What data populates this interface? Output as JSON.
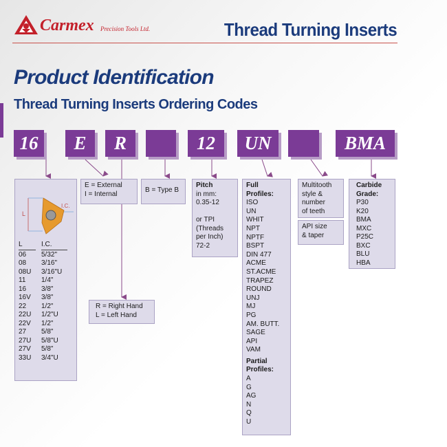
{
  "header": {
    "brand_name": "Carmex",
    "brand_sub": "Precision Tools Ltd.",
    "title": "Thread Turning Inserts"
  },
  "page_title": "Product Identification",
  "subtitle": "Thread Turning Inserts Ordering Codes",
  "colors": {
    "accent_purple": "#7b3b96",
    "title_navy": "#1b3b7c",
    "brand_red": "#c3202a"
  },
  "codes": [
    "16",
    "E",
    "R",
    "",
    "12",
    "UN",
    "",
    "BMA"
  ],
  "size_box": {
    "diagram_L": "L",
    "diagram_IC": "I.C.",
    "col_headers": [
      "L",
      "I.C."
    ],
    "rows": [
      [
        "06",
        "5/32\""
      ],
      [
        "08",
        "3/16\""
      ],
      [
        "08U",
        "3/16\"U"
      ],
      [
        "11",
        "1/4\""
      ],
      [
        "16",
        "3/8\""
      ],
      [
        "16V",
        "3/8\""
      ],
      [
        "22",
        "1/2\""
      ],
      [
        "22U",
        "1/2\"U"
      ],
      [
        "22V",
        "1/2\""
      ],
      [
        "27",
        "5/8\""
      ],
      [
        "27U",
        "5/8\"U"
      ],
      [
        "27V",
        "5/8\""
      ],
      [
        "33U",
        "3/4\"U"
      ]
    ]
  },
  "ext_int_box": [
    "E = External",
    "I = Internal"
  ],
  "hand_box": [
    "R = Right Hand",
    "L = Left Hand"
  ],
  "type_box": "B = Type B",
  "pitch_box": {
    "heading": "Pitch",
    "lines": [
      "in mm:",
      "0.35-12",
      "",
      "or TPI",
      "(Threads",
      "per Inch)",
      "72-2"
    ]
  },
  "profile_box": {
    "full_heading": "Full Profiles:",
    "full": [
      "ISO",
      "UN",
      "WHIT",
      "NPT",
      "NPTF",
      "BSPT",
      "DIN 477",
      "ACME",
      "ST.ACME",
      "TRAPEZ",
      "ROUND",
      "UNJ",
      "MJ",
      "PG",
      "AM. BUTT.",
      "SAGE",
      "API",
      "VAM"
    ],
    "partial_heading": "Partial Profiles:",
    "partial": [
      "A",
      "G",
      "AG",
      "N",
      "Q",
      "U"
    ]
  },
  "multitooth_box": [
    "Multitooth",
    "style &",
    "number",
    "of teeth"
  ],
  "api_box": [
    "API size",
    "& taper"
  ],
  "grade_box": {
    "heading": "Carbide Grade:",
    "grades": [
      "P30",
      "K20",
      "BMA",
      "MXC",
      "P25C",
      "BXC",
      "BLU",
      "HBA"
    ]
  }
}
